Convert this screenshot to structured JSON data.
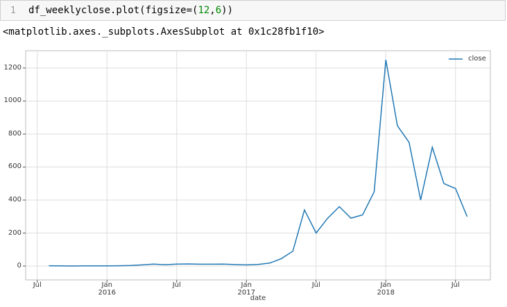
{
  "cell": {
    "prompt": "1",
    "code": [
      "df_weeklyclose.plot(figsize=(",
      "12",
      ",",
      "6",
      "))"
    ],
    "output": "<matplotlib.axes._subplots.AxesSubplot at 0x1c28fb1f10>"
  },
  "chart_data": {
    "type": "line",
    "xlabel": "date",
    "x": [
      "2015-08",
      "2015-09",
      "2015-10",
      "2015-11",
      "2015-12",
      "2016-01",
      "2016-02",
      "2016-03",
      "2016-04",
      "2016-05",
      "2016-06",
      "2016-07",
      "2016-08",
      "2016-09",
      "2016-10",
      "2016-11",
      "2016-12",
      "2017-01",
      "2017-02",
      "2017-03",
      "2017-04",
      "2017-05",
      "2017-06",
      "2017-07",
      "2017-08",
      "2017-09",
      "2017-10",
      "2017-11",
      "2017-12",
      "2018-01",
      "2018-02",
      "2018-03",
      "2018-04",
      "2018-05",
      "2018-06",
      "2018-07",
      "2018-08"
    ],
    "series": [
      {
        "name": "close",
        "color": "#1f77b4",
        "values": [
          2,
          1,
          0,
          1,
          1,
          1,
          2,
          3,
          7,
          12,
          8,
          12,
          13,
          11,
          11,
          12,
          9,
          7,
          10,
          18,
          45,
          90,
          340,
          200,
          290,
          360,
          290,
          310,
          450,
          1250,
          850,
          750,
          400,
          720,
          500,
          470,
          300
        ]
      }
    ],
    "xlim": [
      "2015-06",
      "2018-10"
    ],
    "xticks": [
      {
        "value": "2015-07",
        "label": "Jul"
      },
      {
        "value": "2016-01",
        "label": "Jan\n2016"
      },
      {
        "value": "2016-07",
        "label": "Jul"
      },
      {
        "value": "2017-01",
        "label": "Jan\n2017"
      },
      {
        "value": "2017-07",
        "label": "Jul"
      },
      {
        "value": "2018-01",
        "label": "Jan\n2018"
      },
      {
        "value": "2018-07",
        "label": "Jul"
      }
    ],
    "ylim": [
      -84,
      1305
    ],
    "yticks": [
      0,
      200,
      400,
      600,
      800,
      1000,
      1200
    ],
    "grid": true,
    "legend": "upper right"
  }
}
